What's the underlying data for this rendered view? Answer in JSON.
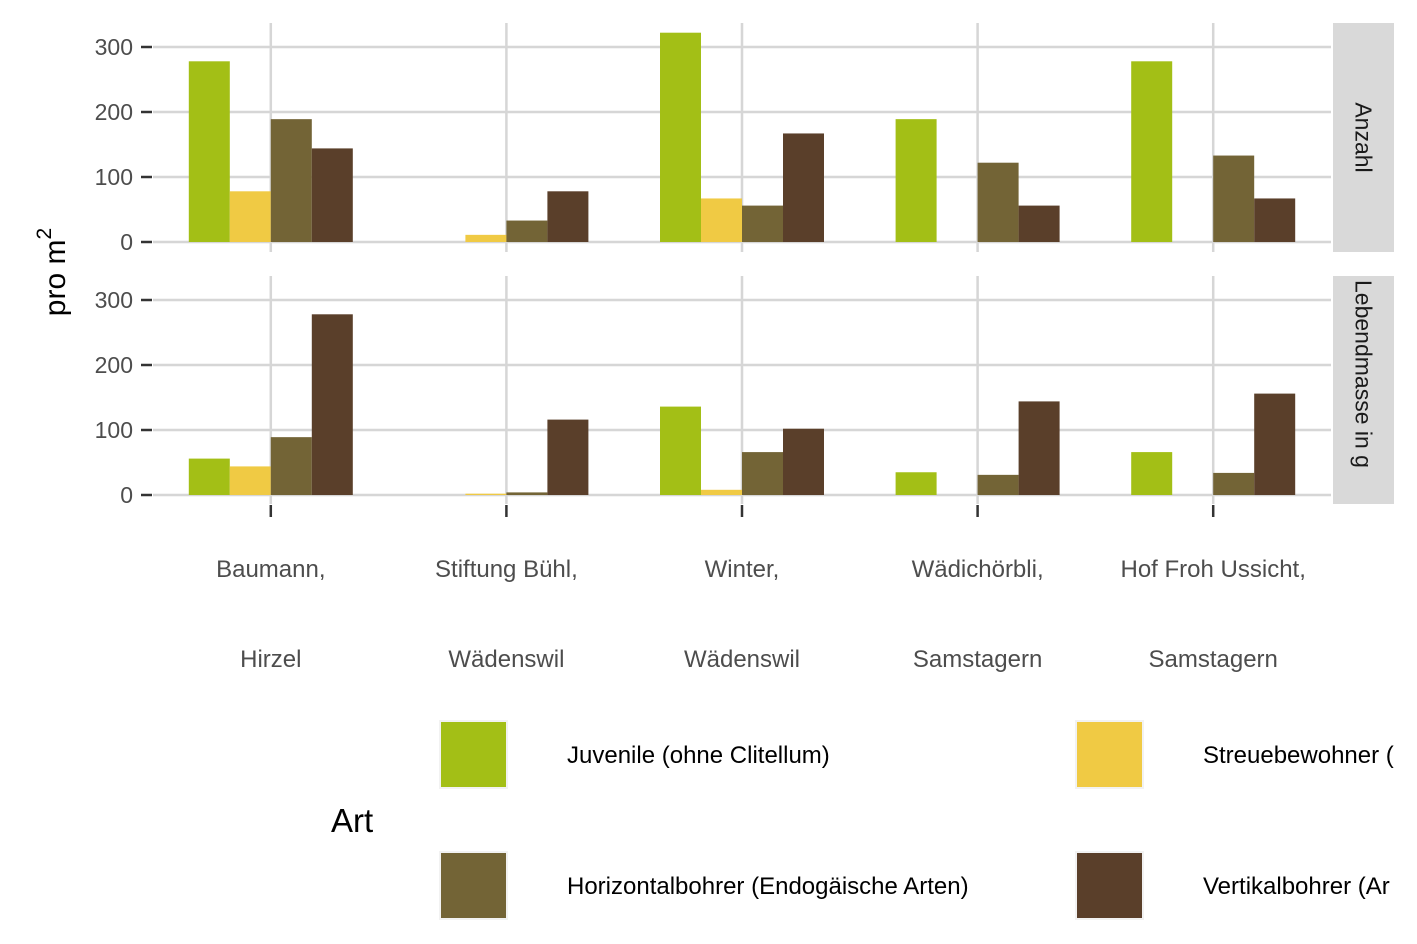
{
  "chart_data": {
    "type": "bar",
    "ylabel": "pro m",
    "ylabel_superscript": "2",
    "categories": [
      [
        "Baumann,",
        "Hirzel"
      ],
      [
        "Stiftung Bühl,",
        "Wädenswil"
      ],
      [
        "Winter,",
        "Wädenswil"
      ],
      [
        "Wädichörbli,",
        "Samstagern"
      ],
      [
        "Hof Froh Ussicht,",
        "Samstagern"
      ]
    ],
    "ylim": [
      0,
      330
    ],
    "yticks": [
      0,
      100,
      200,
      300
    ],
    "grid": true,
    "legend": {
      "title": "Art",
      "position": "bottom",
      "entries": [
        {
          "label": "Juvenile (ohne Clitellum)",
          "color": "#a3bf16"
        },
        {
          "label": "Streuebewohner (",
          "color": "#f0ca44"
        },
        {
          "label": "Horizontalbohrer (Endogäische Arten)",
          "color": "#736436"
        },
        {
          "label": "Vertikalbohrer (Ar",
          "color": "#5a3f2a"
        }
      ]
    },
    "panels": [
      {
        "strip": "Anzahl",
        "series": [
          {
            "name": "Juvenile (ohne Clitellum)",
            "color": "#a3bf16",
            "values": [
              278,
              0,
              322,
              189,
              278
            ]
          },
          {
            "name": "Streuebewohner",
            "color": "#f0ca44",
            "values": [
              78,
              11,
              67,
              0,
              0
            ]
          },
          {
            "name": "Horizontalbohrer (Endogäische Arten)",
            "color": "#736436",
            "values": [
              189,
              33,
              56,
              122,
              133
            ]
          },
          {
            "name": "Vertikalbohrer",
            "color": "#5a3f2a",
            "values": [
              144,
              78,
              167,
              56,
              67
            ]
          }
        ]
      },
      {
        "strip": "Lebendmasse in g",
        "series": [
          {
            "name": "Juvenile (ohne Clitellum)",
            "color": "#a3bf16",
            "values": [
              56,
              0,
              136,
              35,
              66
            ]
          },
          {
            "name": "Streuebewohner",
            "color": "#f0ca44",
            "values": [
              44,
              2,
              8,
              0,
              0
            ]
          },
          {
            "name": "Horizontalbohrer (Endogäische Arten)",
            "color": "#736436",
            "values": [
              89,
              4,
              66,
              31,
              34
            ]
          },
          {
            "name": "Vertikalbohrer",
            "color": "#5a3f2a",
            "values": [
              278,
              116,
              102,
              144,
              156
            ]
          }
        ]
      }
    ]
  }
}
